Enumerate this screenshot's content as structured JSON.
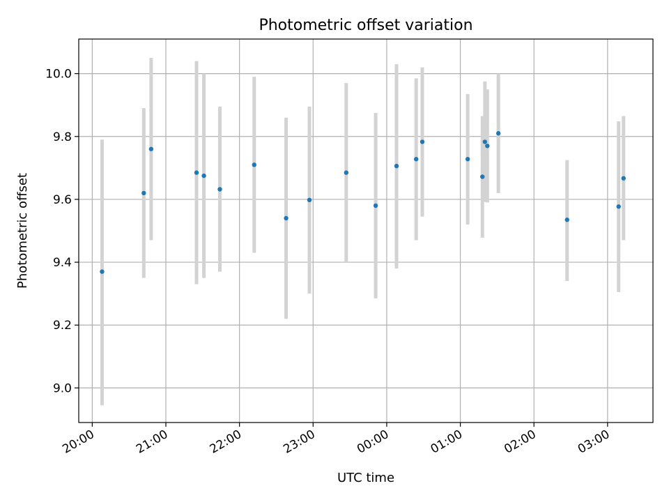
{
  "chart_data": {
    "type": "scatter",
    "title": "Photometric offset variation",
    "xlabel": "UTC time",
    "ylabel": "Photometric offset",
    "x_tick_labels": [
      "20:00",
      "21:00",
      "22:00",
      "23:00",
      "00:00",
      "01:00",
      "02:00",
      "03:00"
    ],
    "y_tick_labels": [
      "9.0",
      "9.2",
      "9.4",
      "9.6",
      "9.8",
      "10.0"
    ],
    "y_ticks": [
      9.0,
      9.2,
      9.4,
      9.6,
      9.8,
      10.0
    ],
    "xlim": [
      "19:49",
      "03:37"
    ],
    "ylim": [
      8.89,
      10.11
    ],
    "grid": true,
    "colors": {
      "point": "#1f77b4",
      "errorbar": "#d3d3d3",
      "grid": "#b0b0b0"
    },
    "series": [
      {
        "points": [
          {
            "x": "20:08",
            "y": 9.37,
            "ymin": 8.945,
            "ymax": 9.79
          },
          {
            "x": "20:42",
            "y": 9.62,
            "ymin": 9.35,
            "ymax": 9.89
          },
          {
            "x": "20:48",
            "y": 9.76,
            "ymin": 9.47,
            "ymax": 10.05
          },
          {
            "x": "21:25",
            "y": 9.685,
            "ymin": 9.33,
            "ymax": 10.04
          },
          {
            "x": "21:31",
            "y": 9.675,
            "ymin": 9.35,
            "ymax": 10.0
          },
          {
            "x": "21:44",
            "y": 9.632,
            "ymin": 9.37,
            "ymax": 9.895
          },
          {
            "x": "22:12",
            "y": 9.71,
            "ymin": 9.43,
            "ymax": 9.99
          },
          {
            "x": "22:38",
            "y": 9.54,
            "ymin": 9.22,
            "ymax": 9.86
          },
          {
            "x": "22:57",
            "y": 9.598,
            "ymin": 9.3,
            "ymax": 9.895
          },
          {
            "x": "23:27",
            "y": 9.685,
            "ymin": 9.4,
            "ymax": 9.97
          },
          {
            "x": "23:51",
            "y": 9.58,
            "ymin": 9.285,
            "ymax": 9.875
          },
          {
            "x": "00:08",
            "y": 9.706,
            "ymin": 9.38,
            "ymax": 10.03
          },
          {
            "x": "00:24",
            "y": 9.728,
            "ymin": 9.47,
            "ymax": 9.985
          },
          {
            "x": "00:29",
            "y": 9.783,
            "ymin": 9.545,
            "ymax": 10.02
          },
          {
            "x": "01:06",
            "y": 9.728,
            "ymin": 9.52,
            "ymax": 9.935
          },
          {
            "x": "01:18",
            "y": 9.672,
            "ymin": 9.478,
            "ymax": 9.865
          },
          {
            "x": "01:20",
            "y": 9.783,
            "ymin": 9.592,
            "ymax": 9.975
          },
          {
            "x": "01:22",
            "y": 9.77,
            "ymin": 9.59,
            "ymax": 9.95
          },
          {
            "x": "01:31",
            "y": 9.81,
            "ymin": 9.62,
            "ymax": 10.0
          },
          {
            "x": "02:27",
            "y": 9.535,
            "ymin": 9.34,
            "ymax": 9.725
          },
          {
            "x": "03:09",
            "y": 9.577,
            "ymin": 9.305,
            "ymax": 9.848
          },
          {
            "x": "03:13",
            "y": 9.667,
            "ymin": 9.47,
            "ymax": 9.865
          }
        ]
      }
    ]
  }
}
